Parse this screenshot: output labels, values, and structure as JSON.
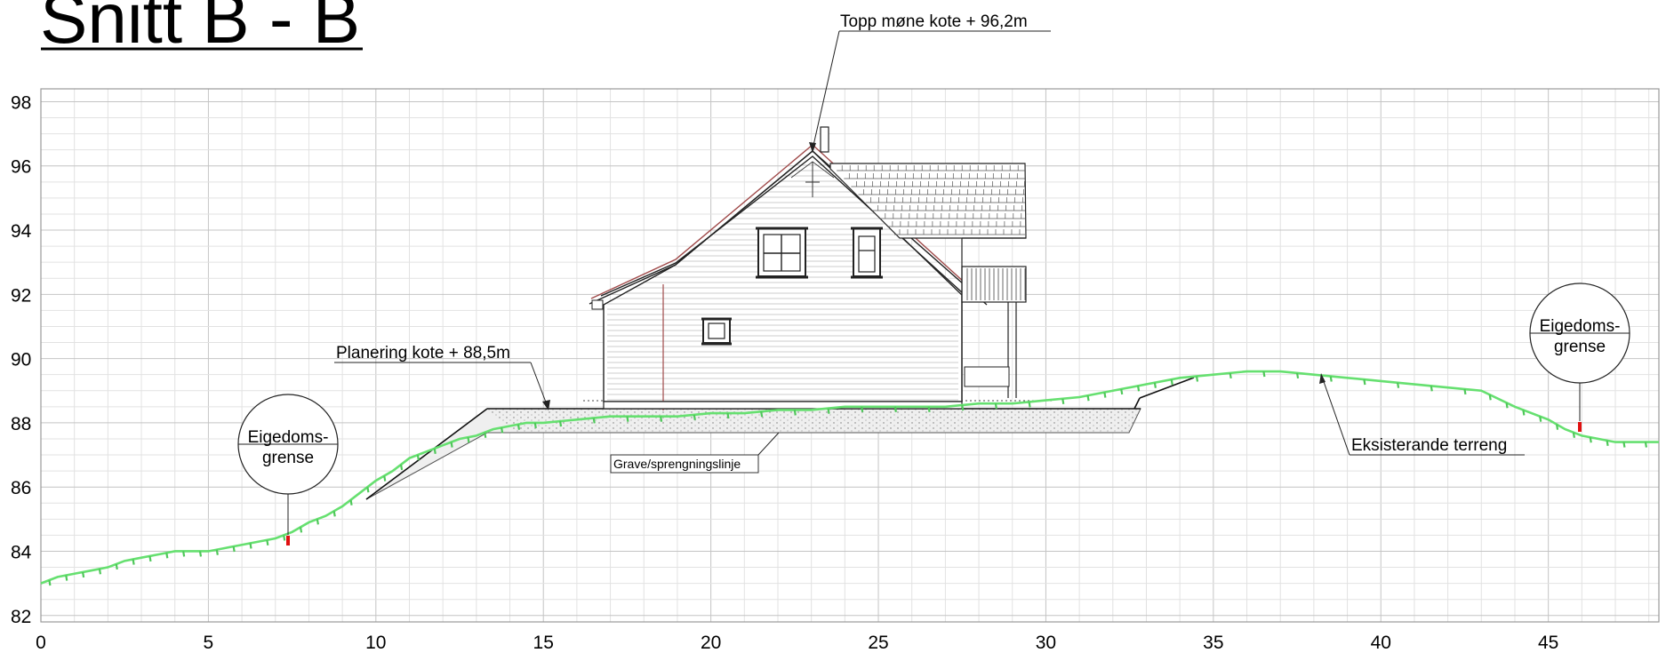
{
  "title": "Snitt B - B",
  "axis": {
    "y_ticks": [
      "82",
      "84",
      "86",
      "88",
      "90",
      "92",
      "94",
      "96",
      "98"
    ],
    "x_ticks": [
      "0",
      "5",
      "10",
      "15",
      "20",
      "25",
      "30",
      "35",
      "40",
      "45"
    ],
    "x_range": [
      0,
      48.3
    ],
    "y_range": [
      81.8,
      98.4
    ]
  },
  "annotations": {
    "ridge": "Topp møne kote + 96,2m",
    "leveling": "Planering kote + 88,5m",
    "excavation": "Grave/sprengningslinje",
    "existing_terrain": "Eksisterande terreng",
    "boundary_left_line1": "Eigedoms-",
    "boundary_left_line2": "grense",
    "boundary_right_line1": "Eigedoms-",
    "boundary_right_line2": "grense"
  },
  "chart_data": {
    "type": "line",
    "title": "Snitt B - B",
    "xlabel": "",
    "ylabel": "",
    "xlim": [
      0,
      48.3
    ],
    "ylim": [
      81.8,
      98.4
    ],
    "grid": true,
    "series": [
      {
        "x": [
          0,
          0.5,
          1,
          1.5,
          2,
          2.5,
          3,
          3.5,
          4,
          4.5,
          5,
          5.5,
          6,
          6.5,
          7,
          7.5,
          8,
          8.5,
          9,
          9.5,
          10,
          10.5,
          11,
          11.5,
          12,
          12.5,
          13,
          13.5,
          14,
          14.5,
          15,
          16,
          17,
          18,
          19,
          20,
          21,
          22,
          23,
          24,
          25,
          26,
          27,
          28,
          29,
          30,
          31,
          32,
          33,
          34,
          35,
          36,
          37,
          38,
          39,
          40,
          41,
          42,
          43,
          44,
          45,
          45.5,
          46,
          46.5,
          47,
          47.5,
          48.3
        ],
        "y": [
          83,
          83.2,
          83.3,
          83.4,
          83.5,
          83.7,
          83.8,
          83.9,
          84,
          84,
          84,
          84.1,
          84.2,
          84.3,
          84.4,
          84.6,
          84.9,
          85.1,
          85.4,
          85.8,
          86.2,
          86.5,
          86.9,
          87.1,
          87.3,
          87.5,
          87.6,
          87.8,
          87.9,
          88,
          88,
          88.1,
          88.2,
          88.2,
          88.2,
          88.3,
          88.3,
          88.4,
          88.4,
          88.5,
          88.5,
          88.5,
          88.5,
          88.6,
          88.6,
          88.7,
          88.8,
          89,
          89.2,
          89.4,
          89.5,
          89.6,
          89.6,
          89.5,
          89.4,
          89.3,
          89.2,
          89.1,
          89,
          88.5,
          88.1,
          87.8,
          87.6,
          87.5,
          87.4,
          87.4,
          87.4
        ]
      }
    ],
    "boundary_markers": [
      {
        "x": 7.5,
        "y": 84.5
      },
      {
        "x": 45.9,
        "y": 87.9
      }
    ],
    "ridge_level": 96.2,
    "leveling_level": 88.5
  }
}
